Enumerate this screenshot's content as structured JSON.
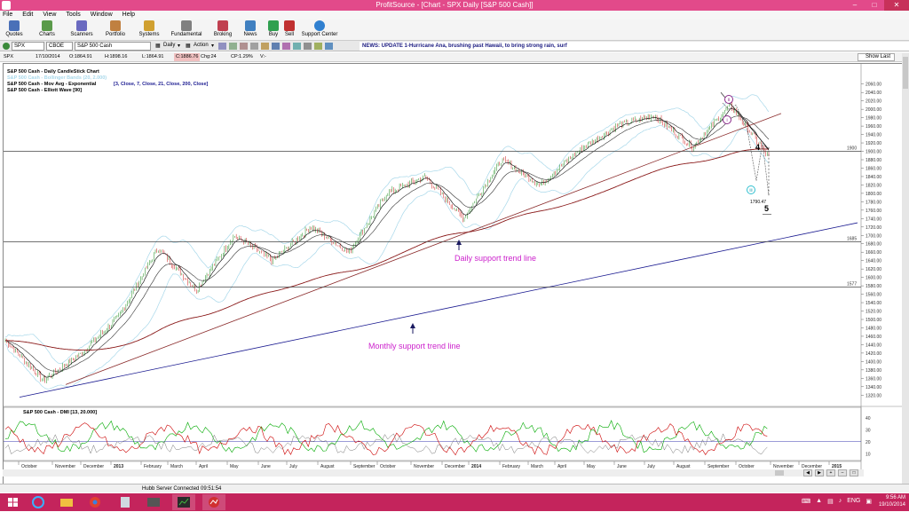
{
  "window": {
    "title": "ProfitSource - [Chart - SPX Daily [S&P 500 Cash]]"
  },
  "menu": [
    "File",
    "Edit",
    "View",
    "Tools",
    "Window",
    "Help"
  ],
  "toolbar": [
    {
      "label": "Quotes",
      "icon": "quotes-icon"
    },
    {
      "label": "Charts",
      "icon": "charts-icon"
    },
    {
      "label": "Scanners",
      "icon": "scanners-icon"
    },
    {
      "label": "Portfolio",
      "icon": "portfolio-icon"
    },
    {
      "label": "Systems",
      "icon": "systems-icon"
    },
    {
      "label": "Fundamental",
      "icon": "fundamental-icon"
    },
    {
      "label": "Broking",
      "icon": "broking-icon"
    },
    {
      "label": "News",
      "icon": "news-icon"
    },
    {
      "label": "Buy",
      "icon": "buy-icon"
    },
    {
      "label": "Sell",
      "icon": "sell-icon"
    },
    {
      "label": "Support Center",
      "icon": "support-icon"
    }
  ],
  "symbolbar": {
    "symbol": "SPX",
    "exchange": "CBOE",
    "name": "S&P 500 Cash",
    "period": "Daily",
    "action": "Action",
    "news": "NEWS: UPDATE 1-Hurricane Ana, brushing past Hawaii, to bring strong rain, surf"
  },
  "infobar": {
    "symbol": "SPX",
    "date": "17/10/2014",
    "open": "O:1864.91",
    "high": "H:1898.16",
    "low": "L:1864.91",
    "close": "C:1886.76",
    "change": "Chg:24",
    "change_pct": "CP:1.29%",
    "volume": "V:-",
    "show_last": "Show Last"
  },
  "legend": [
    {
      "text": "S&P 500 Cash - Daily CandleStick Chart",
      "params": "",
      "color": "#000000"
    },
    {
      "text": "S&P 500 Cash - Bollinger Bands (20, 2.000)",
      "params": "",
      "color": "#a8d8ea"
    },
    {
      "text": "S&P 500 Cash - Mov Avg - Exponential",
      "params": "[3, Close, 7, Close, 21, Close, 200, Close]",
      "color": "#000000"
    },
    {
      "text": "S&P 500 Cash - Elliott Wave [90]",
      "params": "",
      "color": "#000000"
    }
  ],
  "price_axis": [
    "2060.00",
    "2040.00",
    "2020.00",
    "2000.00",
    "1980.00",
    "1960.00",
    "1940.00",
    "1920.00",
    "1900.00",
    "1880.00",
    "1860.00",
    "1840.00",
    "1820.00",
    "1800.00",
    "1780.00",
    "1760.00",
    "1740.00",
    "1720.00",
    "1700.00",
    "1680.00",
    "1660.00",
    "1640.00",
    "1620.00",
    "1600.00",
    "1580.00",
    "1560.00",
    "1540.00",
    "1520.00",
    "1500.00",
    "1480.00",
    "1460.00",
    "1440.00",
    "1420.00",
    "1400.00",
    "1380.00",
    "1360.00",
    "1340.00",
    "1320.00"
  ],
  "levels": [
    {
      "label": "1900",
      "value": 1900
    },
    {
      "label": "1685",
      "value": 1685
    },
    {
      "label": "1577",
      "value": 1577
    }
  ],
  "annotations": {
    "daily_trend": "Daily support trend line",
    "monthly_trend": "Monthly support trend line",
    "wave_4": "4",
    "wave_5": "5",
    "wave_i": "i",
    "wave_ii": "ii",
    "wave_iii": "iii",
    "low_value": "1790.47"
  },
  "dmi": {
    "title": "S&P 500 Cash - DMI [13, 20.000]",
    "axis": [
      "40",
      "30",
      "20",
      "10"
    ],
    "colors": {
      "plus": "#00aa00",
      "minus": "#cc0000",
      "adx": "#3a3ab0"
    }
  },
  "time_axis": [
    {
      "label": "October",
      "bold": false
    },
    {
      "label": "November",
      "bold": false
    },
    {
      "label": "December",
      "bold": false
    },
    {
      "label": "2013",
      "bold": true
    },
    {
      "label": "February",
      "bold": false
    },
    {
      "label": "March",
      "bold": false
    },
    {
      "label": "April",
      "bold": false
    },
    {
      "label": "May",
      "bold": false
    },
    {
      "label": "June",
      "bold": false
    },
    {
      "label": "July",
      "bold": false
    },
    {
      "label": "August",
      "bold": false
    },
    {
      "label": "September",
      "bold": false
    },
    {
      "label": "October",
      "bold": false
    },
    {
      "label": "November",
      "bold": false
    },
    {
      "label": "December",
      "bold": false
    },
    {
      "label": "2014",
      "bold": true
    },
    {
      "label": "February",
      "bold": false
    },
    {
      "label": "March",
      "bold": false
    },
    {
      "label": "April",
      "bold": false
    },
    {
      "label": "May",
      "bold": false
    },
    {
      "label": "June",
      "bold": false
    },
    {
      "label": "July",
      "bold": false
    },
    {
      "label": "August",
      "bold": false
    },
    {
      "label": "September",
      "bold": false
    },
    {
      "label": "October",
      "bold": false
    },
    {
      "label": "November",
      "bold": false
    },
    {
      "label": "December",
      "bold": false
    },
    {
      "label": "2015",
      "bold": true
    }
  ],
  "status": {
    "text": "Hubb Server Connected 09:51:54"
  },
  "taskbar": {
    "lang": "ENG",
    "time": "9:56 AM",
    "date": "19/10/2014"
  },
  "chart_data": {
    "type": "candlestick",
    "title": "S&P 500 Cash - Daily CandleStick Chart",
    "ylim": [
      1310,
      2070
    ],
    "key_closes": [
      {
        "date": "Oct 2012",
        "value": 1450
      },
      {
        "date": "mid Nov 2012",
        "value": 1355
      },
      {
        "date": "Dec 2012",
        "value": 1420
      },
      {
        "date": "Feb 2013",
        "value": 1510
      },
      {
        "date": "May 2013",
        "value": 1670
      },
      {
        "date": "Jun 2013",
        "value": 1570
      },
      {
        "date": "Jul 2013",
        "value": 1700
      },
      {
        "date": "Aug 2013",
        "value": 1640
      },
      {
        "date": "Sep 2013",
        "value": 1720
      },
      {
        "date": "Oct 2013",
        "value": 1660
      },
      {
        "date": "Nov 2013",
        "value": 1800
      },
      {
        "date": "Dec 2013",
        "value": 1840
      },
      {
        "date": "Feb 2014",
        "value": 1740
      },
      {
        "date": "Mar 2014",
        "value": 1880
      },
      {
        "date": "Apr 2014",
        "value": 1820
      },
      {
        "date": "May 2014",
        "value": 1900
      },
      {
        "date": "Jun 2014",
        "value": 1960
      },
      {
        "date": "Jul 2014",
        "value": 1985
      },
      {
        "date": "Aug 2014",
        "value": 1910
      },
      {
        "date": "Sep 2014",
        "value": 2010
      },
      {
        "date": "Oct 2014",
        "value": 1886.76
      }
    ],
    "overlays": [
      "Bollinger Bands (20, 2.000)",
      "EMA 3",
      "EMA 7",
      "EMA 21",
      "EMA 200"
    ],
    "horizontal_lines": [
      1900,
      1685,
      1577
    ],
    "trend_lines": [
      "Daily support trend line",
      "Monthly support trend line"
    ]
  }
}
